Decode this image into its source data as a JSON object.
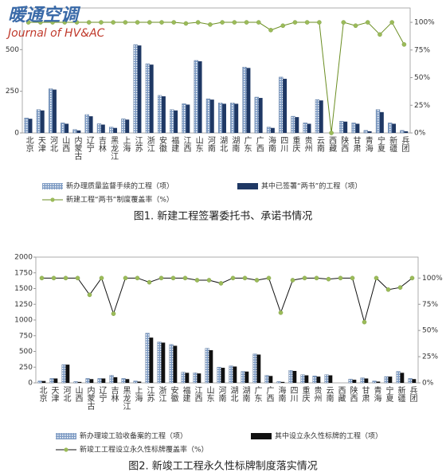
{
  "logo": {
    "title": "暖通空调",
    "subtitle": "Journal of HV&AC"
  },
  "chart_data": [
    {
      "type": "bar_line",
      "title": "图1. 新建工程签署委托书、承诺书情况",
      "categories": [
        "北京",
        "天津",
        "河北",
        "山西",
        "内蒙古",
        "辽宁",
        "吉林",
        "黑龙江",
        "上海",
        "江苏",
        "浙江",
        "安徽",
        "福建",
        "江西",
        "山东",
        "河南",
        "湖北",
        "湖南",
        "广东",
        "广西",
        "海南",
        "四川",
        "重庆",
        "贵州",
        "云南",
        "西藏",
        "陕西",
        "甘肃",
        "青海",
        "宁夏",
        "新疆",
        "兵团"
      ],
      "series": [
        {
          "name": "新办理质量监督手续的工程（项）",
          "color": "#7f9cc4",
          "values": [
            90,
            140,
            265,
            60,
            20,
            110,
            55,
            35,
            85,
            530,
            415,
            225,
            140,
            175,
            435,
            205,
            180,
            180,
            395,
            215,
            35,
            335,
            100,
            60,
            200,
            0,
            70,
            60,
            15,
            140,
            60,
            15
          ]
        },
        {
          "name": "其中已签署“两书”的工程（项）",
          "color": "#1f3864",
          "values": [
            85,
            135,
            260,
            55,
            15,
            100,
            50,
            30,
            80,
            525,
            410,
            220,
            135,
            170,
            430,
            200,
            175,
            175,
            390,
            210,
            30,
            325,
            95,
            55,
            195,
            0,
            68,
            55,
            10,
            125,
            55,
            10
          ]
        },
        {
          "name": "新建工程“两书”制度覆盖率（%）",
          "color": "#6b8e23",
          "marker_color": "#9bbb59",
          "axis": "y2",
          "values": [
            100,
            100,
            100,
            100,
            100,
            100,
            100,
            100,
            100,
            100,
            100,
            100,
            100,
            99,
            100,
            98,
            100,
            100,
            100,
            100,
            93,
            97,
            100,
            100,
            100,
            0,
            100,
            97,
            100,
            89,
            100,
            80
          ]
        }
      ],
      "ylim": [
        0,
        750
      ],
      "yticks": [
        0,
        250,
        500
      ],
      "y2lim": [
        0,
        113
      ],
      "y2ticks": [
        {
          "value": 0,
          "label": "0%"
        },
        {
          "value": 25,
          "label": "25%"
        },
        {
          "value": 50,
          "label": "50%"
        },
        {
          "value": 75,
          "label": "75%"
        },
        {
          "value": 100,
          "label": "100%"
        }
      ]
    },
    {
      "type": "bar_line",
      "title": "图2. 新竣工工程永久性标牌制度落实情况",
      "categories": [
        "北京",
        "天津",
        "河北",
        "山西",
        "内蒙古",
        "辽宁",
        "吉林",
        "黑龙江",
        "上海",
        "江苏",
        "浙江",
        "安徽",
        "福建",
        "江西",
        "山东",
        "河南",
        "湖北",
        "湖南",
        "广东",
        "广西",
        "海南",
        "四川",
        "重庆",
        "贵州",
        "云南",
        "西藏",
        "陕西",
        "甘肃",
        "青海",
        "宁夏",
        "新疆",
        "兵团"
      ],
      "series": [
        {
          "name": "新办理竣工验收备案的工程（项）",
          "color": "#7f9cc4",
          "values": [
            30,
            70,
            290,
            20,
            70,
            70,
            120,
            70,
            30,
            790,
            650,
            610,
            170,
            160,
            550,
            250,
            270,
            180,
            460,
            120,
            20,
            200,
            130,
            110,
            130,
            0,
            60,
            80,
            30,
            100,
            180,
            70
          ]
        },
        {
          "name": "其中设立永久性标牌的工程（项）",
          "color": "#111111",
          "values": [
            30,
            70,
            290,
            15,
            60,
            70,
            90,
            60,
            20,
            720,
            640,
            590,
            160,
            150,
            520,
            240,
            260,
            180,
            450,
            110,
            15,
            190,
            120,
            100,
            120,
            0,
            50,
            70,
            20,
            100,
            160,
            60
          ]
        },
        {
          "name": "新竣工工程设立永久性标牌覆盖率（%）",
          "color": "#111111",
          "marker_color": "#9bbb59",
          "axis": "y2",
          "values": [
            100,
            100,
            100,
            100,
            84,
            100,
            66,
            100,
            100,
            96,
            100,
            100,
            100,
            98,
            98,
            95,
            100,
            100,
            98,
            100,
            67,
            98,
            100,
            100,
            99,
            100,
            100,
            58,
            100,
            89,
            91,
            100
          ]
        }
      ],
      "ylim": [
        0,
        2000
      ],
      "yticks": [
        0,
        250,
        500,
        750,
        1000,
        1250,
        1500,
        1750,
        2000
      ],
      "y2lim": [
        0,
        120
      ],
      "y2ticks": [
        {
          "value": 0,
          "label": "0%"
        },
        {
          "value": 25,
          "label": "25%"
        },
        {
          "value": 50,
          "label": "50%"
        },
        {
          "value": 75,
          "label": "75%"
        },
        {
          "value": 100,
          "label": "100%"
        }
      ]
    }
  ]
}
